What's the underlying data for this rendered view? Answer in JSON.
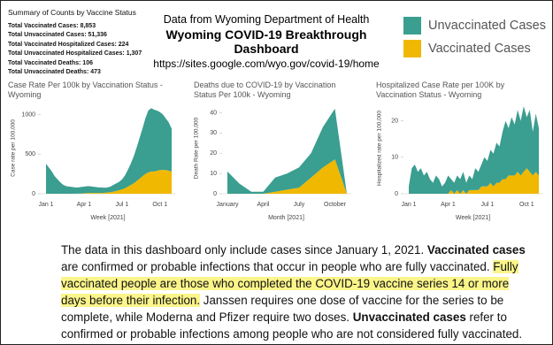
{
  "summary": {
    "title": "Summary of Counts by Vaccine Status",
    "items": [
      {
        "label": "Total Vaccinated Cases:",
        "value": "8,853"
      },
      {
        "label": "Total Unvaccinated Cases:",
        "value": "51,336"
      },
      {
        "label": "Total Vaccinated Hospitalized Cases:",
        "value": "224"
      },
      {
        "label": "Total Unvaccinated Hospitalized Cases:",
        "value": "1,307"
      },
      {
        "label": "Total Vaccinated Deaths:",
        "value": "106"
      },
      {
        "label": "Total Unvaccinated Deaths:",
        "value": "473"
      }
    ]
  },
  "header": {
    "source": "Data from Wyoming Department of Health",
    "title": "Wyoming COVID-19 Breakthrough Dashboard",
    "url": "https://sites.google.com/wyo.gov/covid-19/home"
  },
  "legend": [
    {
      "name": "Unvaccinated Cases",
      "color": "#3a9e90"
    },
    {
      "name": "Vaccinated Cases",
      "color": "#f0b800"
    }
  ],
  "chart_data": [
    {
      "type": "area",
      "stacked": true,
      "title": "Case Rate Per 100k by Vaccination Status - Wyoming",
      "x_label": "Week [2021]",
      "y_label": "Case rate per 100,000",
      "categories": [
        "Jan 1",
        null,
        null,
        null,
        null,
        null,
        null,
        null,
        null,
        null,
        null,
        null,
        null,
        "Apr 1",
        null,
        null,
        null,
        null,
        null,
        null,
        null,
        null,
        null,
        null,
        null,
        null,
        "Jul 1",
        null,
        null,
        null,
        null,
        null,
        null,
        null,
        null,
        null,
        null,
        null,
        null,
        "Oct 1",
        null,
        null,
        null,
        null
      ],
      "ylim": [
        0,
        1150
      ],
      "yticks": [
        0,
        500,
        1000
      ],
      "series": [
        {
          "color": "#f0b800",
          "values": [
            0,
            0,
            0,
            0,
            0,
            0,
            0,
            0,
            0,
            0,
            1,
            2,
            3,
            5,
            8,
            10,
            10,
            10,
            10,
            10,
            12,
            15,
            20,
            25,
            35,
            45,
            55,
            70,
            90,
            110,
            130,
            160,
            190,
            220,
            250,
            270,
            280,
            280,
            290,
            300,
            300,
            300,
            290,
            280
          ]
        },
        {
          "color": "#3a9e90",
          "values": [
            380,
            330,
            280,
            220,
            180,
            140,
            110,
            95,
            90,
            85,
            79,
            78,
            82,
            85,
            87,
            85,
            80,
            75,
            70,
            70,
            63,
            65,
            70,
            85,
            95,
            105,
            125,
            160,
            210,
            270,
            340,
            420,
            510,
            600,
            700,
            780,
            800,
            780,
            760,
            730,
            700,
            650,
            610,
            540
          ]
        }
      ]
    },
    {
      "type": "area",
      "stacked": true,
      "title": "Deaths due to COVID-19 by Vaccination Status Per 100k - Wyoming",
      "x_label": "Month [2021]",
      "y_label": "Death Rate per 100,000",
      "categories": [
        "January",
        null,
        null,
        "April",
        null,
        null,
        "July",
        null,
        null,
        "October",
        null
      ],
      "ylim": [
        0,
        45
      ],
      "yticks": [
        0,
        10,
        20,
        30,
        40
      ],
      "series": [
        {
          "color": "#f0b800",
          "values": [
            0,
            0,
            0,
            0,
            1,
            2,
            3,
            8,
            13,
            17,
            0
          ]
        },
        {
          "color": "#3a9e90",
          "values": [
            11,
            5,
            1,
            1,
            7,
            8,
            10,
            12,
            20,
            25,
            0
          ]
        }
      ]
    },
    {
      "type": "area",
      "stacked": true,
      "title": "Hospitalized Case Rate per 100K by Vaccination Status - Wyoming",
      "x_label": "Week [2021]",
      "y_label": "Hospitalized rate per 100,000",
      "categories": [
        "Jan 1",
        null,
        null,
        null,
        null,
        null,
        null,
        null,
        null,
        null,
        null,
        null,
        null,
        "Apr 1",
        null,
        null,
        null,
        null,
        null,
        null,
        null,
        null,
        null,
        null,
        null,
        null,
        "Jul 1",
        null,
        null,
        null,
        null,
        null,
        null,
        null,
        null,
        null,
        null,
        null,
        null,
        "Oct 1",
        null,
        null,
        null,
        null
      ],
      "ylim": [
        0,
        25
      ],
      "yticks": [
        0,
        10,
        20
      ],
      "series": [
        {
          "color": "#f0b800",
          "values": [
            0,
            0,
            0,
            0,
            0,
            0,
            0,
            0,
            0,
            0,
            0,
            0,
            0,
            0,
            1,
            0,
            1,
            0,
            1,
            0,
            1,
            1,
            1,
            1,
            2,
            2,
            2,
            3,
            2,
            3,
            3,
            4,
            4,
            5,
            5,
            5,
            6,
            5,
            6,
            7,
            6,
            5,
            6,
            5
          ]
        },
        {
          "color": "#3a9e90",
          "values": [
            2,
            7,
            8,
            6,
            7,
            5,
            6,
            4,
            3,
            5,
            4,
            2,
            3,
            5,
            3,
            3,
            4,
            4,
            5,
            3,
            4,
            3,
            6,
            5,
            6,
            8,
            7,
            9,
            9,
            11,
            10,
            13,
            16,
            13,
            16,
            14,
            17,
            15,
            18,
            14,
            17,
            12,
            16,
            13
          ]
        }
      ]
    }
  ],
  "note": [
    {
      "text": "The data in this dashboard only include cases since January 1, 2021. ",
      "style": "normal"
    },
    {
      "text": "Vaccinated cases",
      "style": "bold"
    },
    {
      "text": " are confirmed or probable infections that occur in people who are fully vaccinated. ",
      "style": "normal"
    },
    {
      "text": "Fully vaccinated people are those who completed the COVID-19 vaccine series 14 or more days before their infection.",
      "style": "highlight"
    },
    {
      "text": " Janssen requires one dose of vaccine for the series to be complete, while Moderna and Pfizer require two doses. ",
      "style": "normal"
    },
    {
      "text": "Unvaccinated cases",
      "style": "bold"
    },
    {
      "text": " refer to confirmed or probable infections among people who are not considered fully vaccinated.",
      "style": "normal"
    }
  ]
}
